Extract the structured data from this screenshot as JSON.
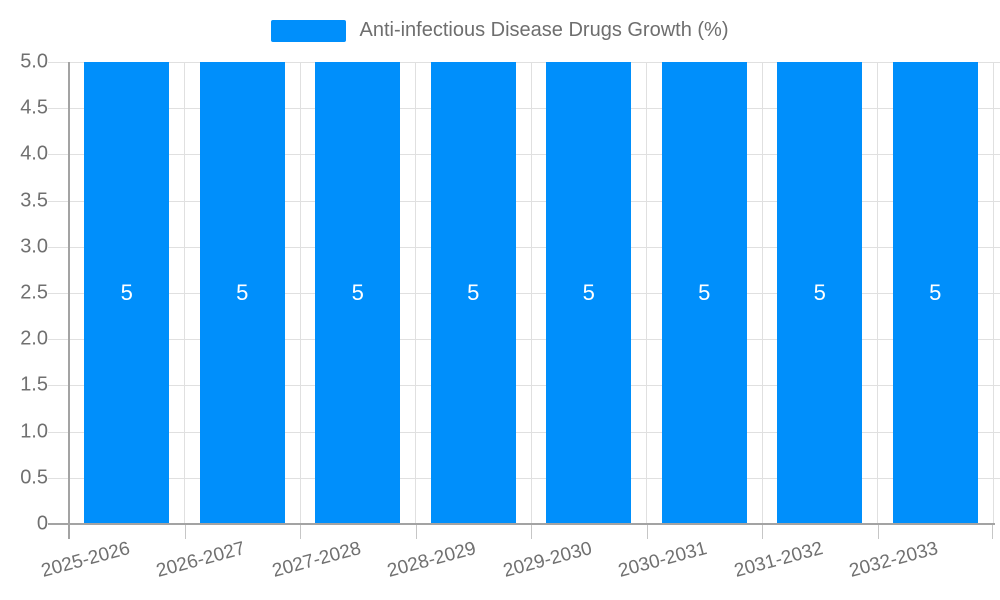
{
  "chart_data": {
    "type": "bar",
    "title": "Anti-infectious Disease Drugs Growth (%)",
    "categories": [
      "2025-2026",
      "2026-2027",
      "2027-2028",
      "2028-2029",
      "2029-2030",
      "2030-2031",
      "2031-2032",
      "2032-2033"
    ],
    "series": [
      {
        "name": "Anti-infectious Disease Drugs Growth (%)",
        "values": [
          5,
          5,
          5,
          5,
          5,
          5,
          5,
          5
        ]
      }
    ],
    "bar_labels": [
      "5",
      "5",
      "5",
      "5",
      "5",
      "5",
      "5",
      "5"
    ],
    "xlabel": "",
    "ylabel": "",
    "ylim": [
      0,
      5
    ],
    "ytick_step": 0.5,
    "ytick_labels": [
      "0",
      "0.5",
      "1.0",
      "1.5",
      "2.0",
      "2.5",
      "3.0",
      "3.5",
      "4.0",
      "4.5",
      "5.0"
    ],
    "grid": true,
    "legend_position": "top-center",
    "colors": {
      "bar": "#008FFB",
      "grid": "#e0e0e0",
      "axis": "#a3a3a3",
      "xtick": "#c6c6c6",
      "tick_label": "#707070",
      "legend_label": "#6e6e6e",
      "value_label": "#ffffff"
    }
  }
}
